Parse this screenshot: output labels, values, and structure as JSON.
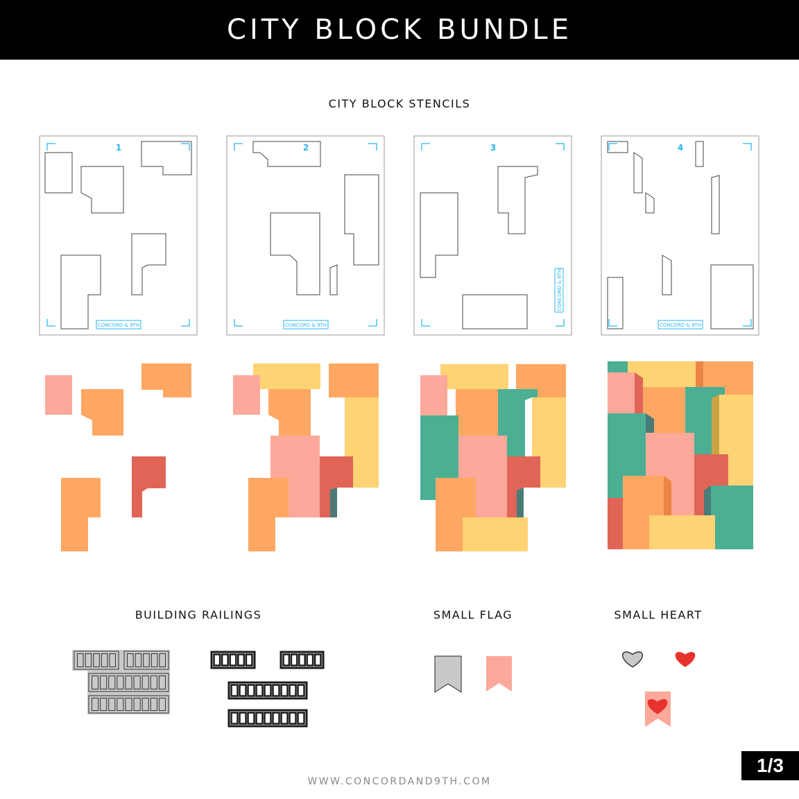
{
  "header": {
    "title": "CITY BLOCK BUNDLE"
  },
  "sections": {
    "stencils": "CITY BLOCK STENCILS",
    "railings": "BUILDING RAILINGS",
    "flag": "SMALL FLAG",
    "heart": "SMALL HEART"
  },
  "stencil_numbers": [
    "1",
    "2",
    "3",
    "4"
  ],
  "stencil_brand": "CONCORD & 9TH",
  "page_indicator": "1/3",
  "footer": {
    "url": "WWW.CONCORDAND9TH.COM"
  },
  "colors": {
    "pink": "#fca89a",
    "orange": "#fea762",
    "yellow": "#fed373",
    "teal": "#4caf94",
    "red": "#e06557",
    "dark_teal": "#4a7b78",
    "dark_orange": "#ec8446",
    "mustard": "#c9a444",
    "stencil_blue": "#29b6f0",
    "heart_red": "#e8322d",
    "die_gray": "#c8c9cb"
  }
}
